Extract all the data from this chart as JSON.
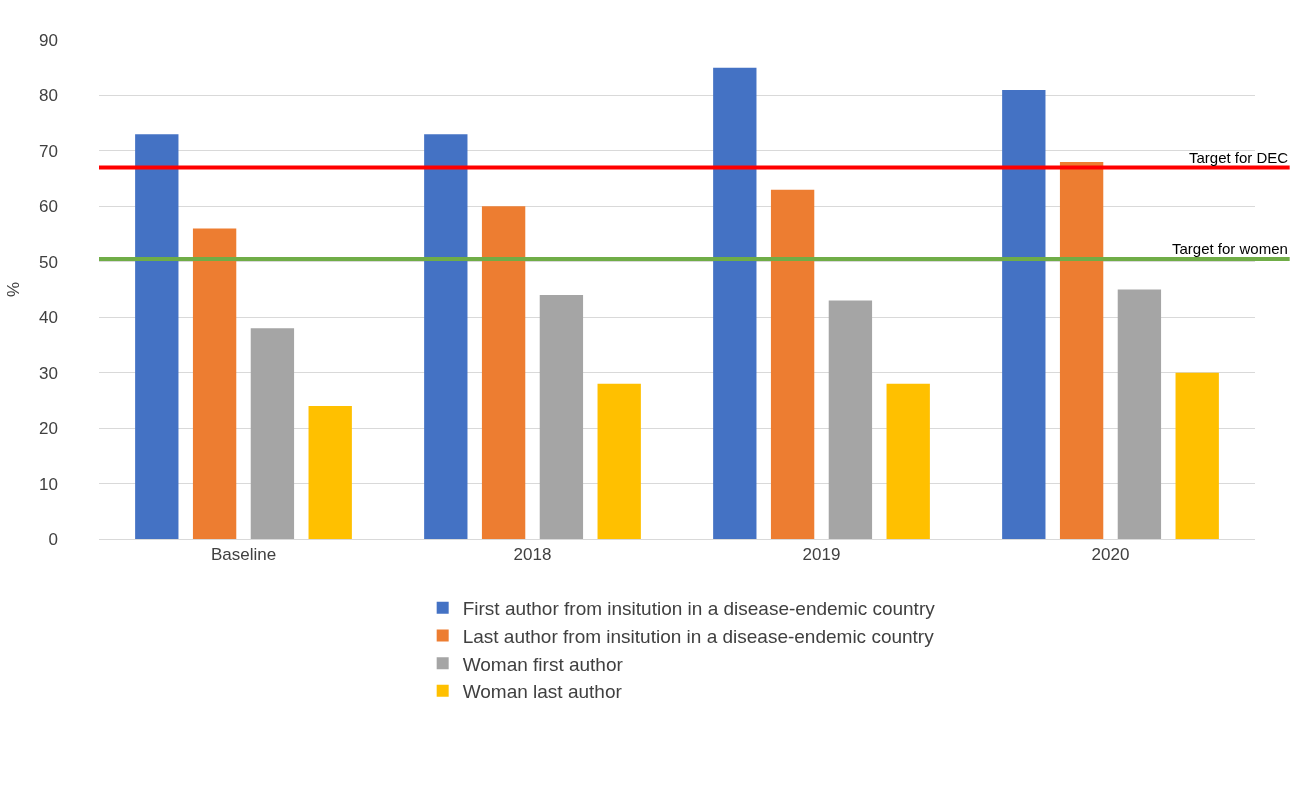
{
  "chart_data": {
    "type": "bar",
    "ylabel": "%",
    "categories": [
      "Baseline",
      "2018",
      "2019",
      "2020"
    ],
    "series": [
      {
        "name": "First author from insitution in a disease-endemic country",
        "color": "#4472c4",
        "values": [
          73,
          73,
          85,
          81
        ]
      },
      {
        "name": "Last author from insitution in a disease-endemic country",
        "color": "#ed7d31",
        "values": [
          56,
          60,
          63,
          68
        ]
      },
      {
        "name": "Woman first author",
        "color": "#a5a5a5",
        "values": [
          38,
          44,
          43,
          45
        ]
      },
      {
        "name": "Woman last author",
        "color": "#ffc000",
        "values": [
          24,
          28,
          28,
          30
        ]
      }
    ],
    "ylim": [
      0,
      90
    ],
    "yticks": [
      0,
      10,
      20,
      30,
      40,
      50,
      60,
      70,
      80,
      90
    ],
    "grid": "y",
    "legend": "bottom",
    "ref_lines": [
      {
        "axis": "y",
        "value": 67,
        "label": "Target for DEC",
        "color": "#ff0000"
      },
      {
        "axis": "y",
        "value": 50.5,
        "label": "Target for women",
        "color": "#70ad47"
      }
    ]
  }
}
